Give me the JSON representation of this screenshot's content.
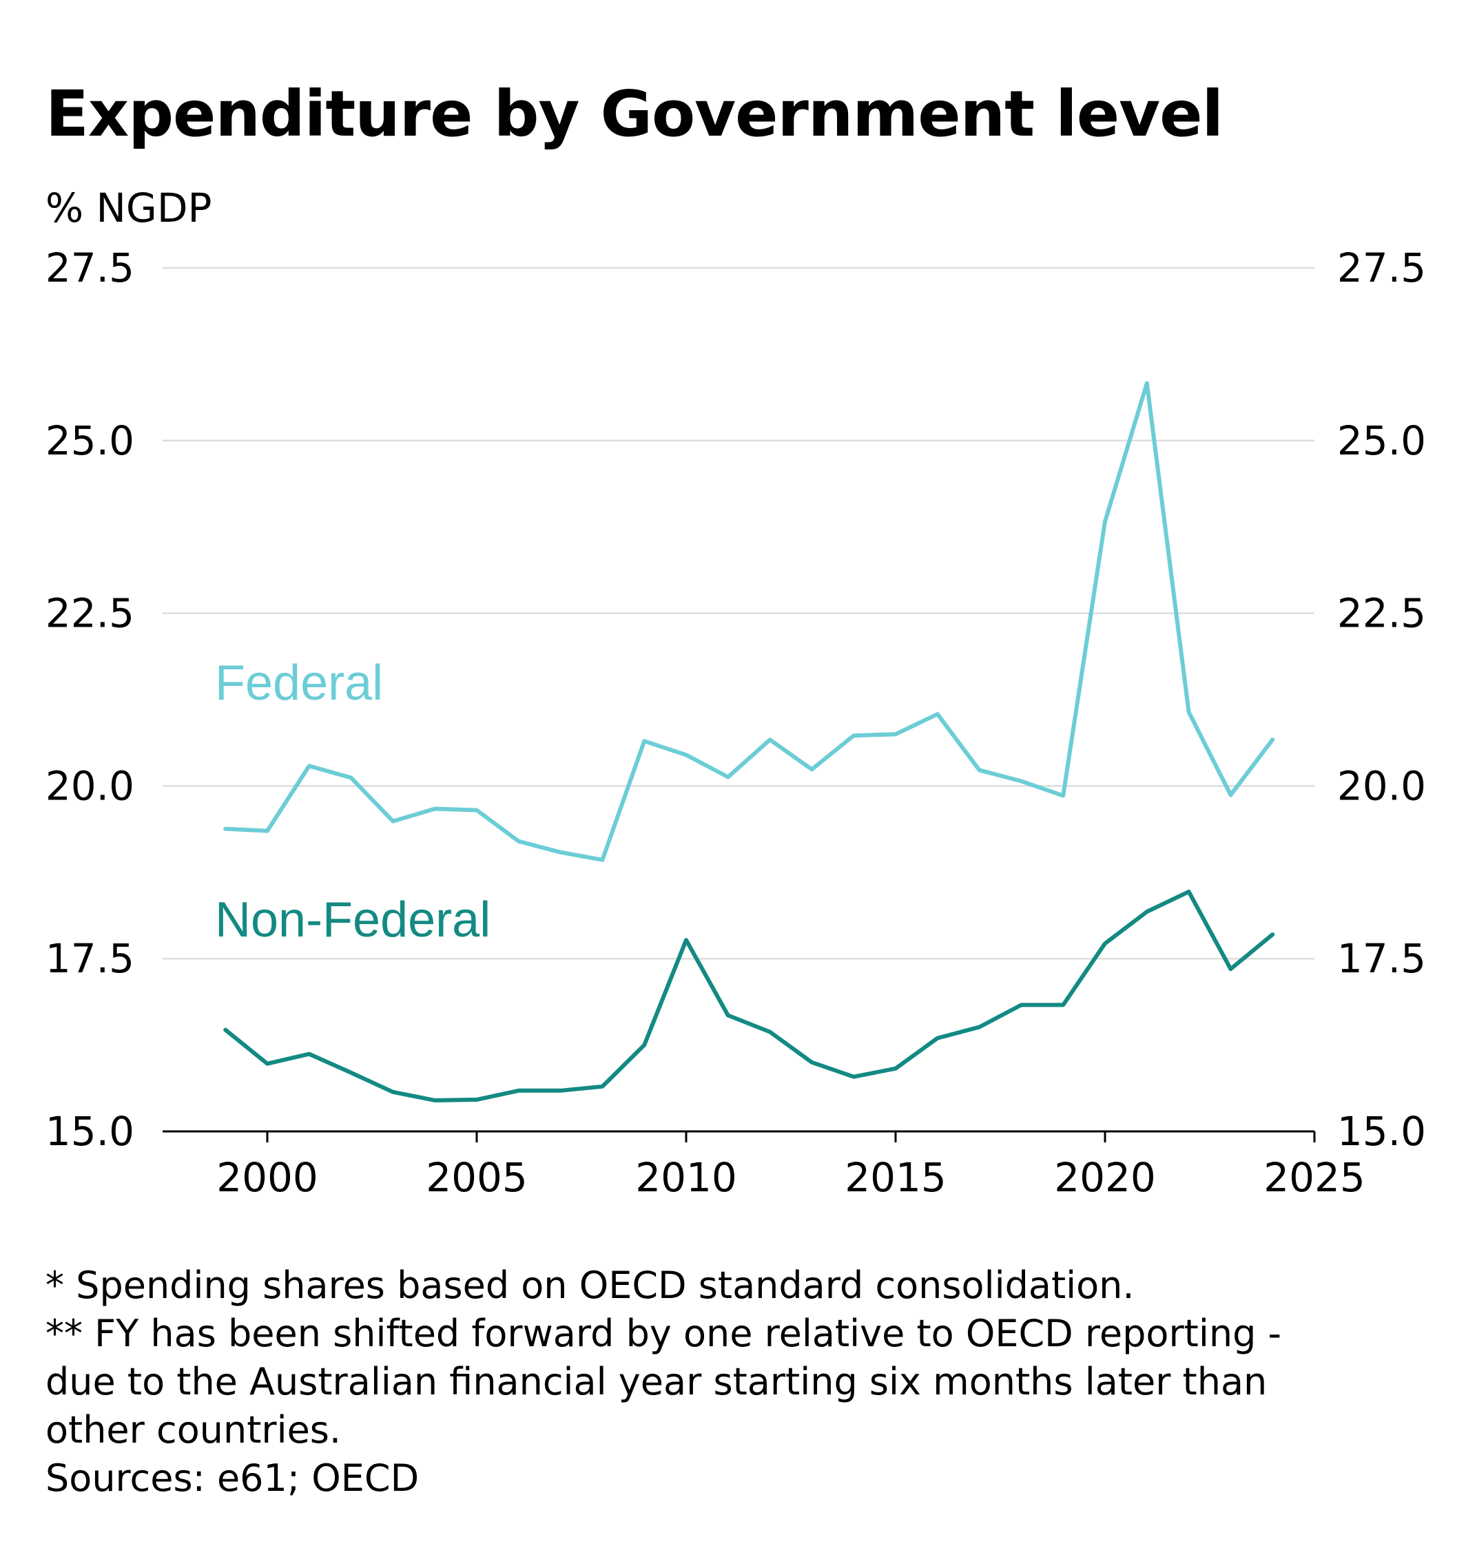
{
  "chart_data": {
    "type": "line",
    "title": "Expenditure by Government level",
    "ylabel": "% NGDP",
    "xlabel": "",
    "ylim": [
      15.0,
      27.5
    ],
    "xlim": [
      1997.5,
      2025
    ],
    "yticks": [
      "15.0",
      "17.5",
      "20.0",
      "22.5",
      "25.0",
      "27.5"
    ],
    "xticks": [
      "2000",
      "2005",
      "2010",
      "2015",
      "2020",
      "2025"
    ],
    "y_axis_sides": "both",
    "grid": "horizontal",
    "x": [
      1999,
      2000,
      2001,
      2002,
      2003,
      2004,
      2005,
      2006,
      2007,
      2008,
      2009,
      2010,
      2011,
      2012,
      2013,
      2014,
      2015,
      2016,
      2017,
      2018,
      2019,
      2020,
      2021,
      2022,
      2023,
      2024
    ],
    "series": [
      {
        "name": "Federal",
        "color": "#6ccdd6",
        "values": [
          19.38,
          19.35,
          20.29,
          20.12,
          19.49,
          19.67,
          19.65,
          19.2,
          19.04,
          18.93,
          20.65,
          20.45,
          20.13,
          20.67,
          20.24,
          20.73,
          20.75,
          21.04,
          20.23,
          20.07,
          19.86,
          23.83,
          25.83,
          21.07,
          19.87,
          20.67
        ]
      },
      {
        "name": "Non-Federal",
        "color": "#138a83",
        "values": [
          16.47,
          15.98,
          16.12,
          15.85,
          15.57,
          15.45,
          15.46,
          15.59,
          15.59,
          15.65,
          16.25,
          17.77,
          16.68,
          16.44,
          16.0,
          15.79,
          15.91,
          16.35,
          16.51,
          16.83,
          16.83,
          17.72,
          18.18,
          18.47,
          17.35,
          17.85
        ]
      }
    ]
  },
  "notes": [
    "* Spending shares based on OECD standard consolidation.",
    "** FY has been shifted forward by one relative to OECD reporting -",
    "due to the Australian financial year starting six months later than",
    "other countries.",
    "Sources: e61; OECD"
  ]
}
